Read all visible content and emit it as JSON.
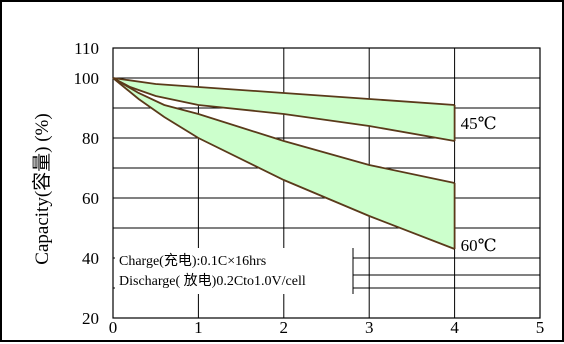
{
  "chart_data": {
    "type": "area",
    "title": "",
    "xlabel": "",
    "ylabel": "Capacity(容量) (%)",
    "xlim": [
      0,
      5
    ],
    "ylim": [
      20,
      110
    ],
    "x_ticks": [
      0,
      1,
      2,
      3,
      4,
      5
    ],
    "y_ticks": [
      20,
      40,
      60,
      80,
      100,
      110
    ],
    "grid": true,
    "fill_color": "#ccffcc",
    "line_color": "#5a3a1a",
    "series": [
      {
        "name": "45℃",
        "upper": {
          "x": [
            0,
            0.5,
            1,
            2,
            3,
            4
          ],
          "y": [
            100,
            98,
            97,
            95,
            93,
            91
          ]
        },
        "lower": {
          "x": [
            0,
            0.2,
            0.5,
            1,
            2,
            3,
            4
          ],
          "y": [
            100,
            97,
            94,
            91,
            88,
            84,
            79
          ]
        }
      },
      {
        "name": "60℃",
        "upper": {
          "x": [
            0,
            0.3,
            0.6,
            1,
            2,
            3,
            4
          ],
          "y": [
            100,
            95,
            91,
            88,
            79,
            71,
            65
          ]
        },
        "lower": {
          "x": [
            0,
            0.3,
            0.6,
            1,
            2,
            3,
            4
          ],
          "y": [
            100,
            93,
            87,
            80,
            66,
            54,
            43
          ]
        }
      }
    ],
    "annotations": [
      "Charge(充电):0.1C×16hrs",
      "Discharge( 放电)0.2Cto1.0V/cell"
    ]
  }
}
